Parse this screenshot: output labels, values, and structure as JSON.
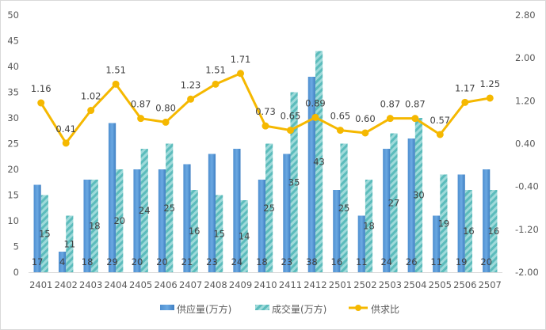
{
  "chart_data": {
    "type": "bar",
    "categories": [
      "2401",
      "2402",
      "2403",
      "2404",
      "2405",
      "2406",
      "2407",
      "2408",
      "2409",
      "2410",
      "2411",
      "2412",
      "2501",
      "2502",
      "2503",
      "2504",
      "2505",
      "2506",
      "2507"
    ],
    "series": [
      {
        "name": "供应量(万方)",
        "type": "bar",
        "axis": "left",
        "color": "#5b9bd5",
        "values": [
          17,
          4,
          18,
          29,
          20,
          20,
          21,
          23,
          24,
          18,
          23,
          38,
          16,
          11,
          24,
          26,
          11,
          19,
          20
        ],
        "labels": [
          "17",
          "4",
          "18",
          "29",
          "20",
          "20",
          "21",
          "23",
          "24",
          "18",
          "23",
          "38",
          "16",
          "11",
          "24",
          "26",
          "11",
          "19",
          "20"
        ]
      },
      {
        "name": "成交量(万方)",
        "type": "bar",
        "axis": "left",
        "color": "#6ec6c6",
        "values": [
          15,
          11,
          18,
          20,
          24,
          25,
          16,
          15,
          14,
          25,
          35,
          43,
          25,
          18,
          27,
          30,
          19,
          16,
          16
        ],
        "labels": [
          "15",
          "11",
          "18",
          "20",
          "24",
          "25",
          "16",
          "15",
          "14",
          "25",
          "35",
          "43",
          "25",
          "18",
          "27",
          "30",
          "19",
          "16",
          "16"
        ]
      },
      {
        "name": "供求比",
        "type": "line",
        "axis": "right",
        "color": "#f5b800",
        "values": [
          1.16,
          0.41,
          1.02,
          1.51,
          0.87,
          0.8,
          1.23,
          1.51,
          1.71,
          0.73,
          0.65,
          0.89,
          0.65,
          0.6,
          0.87,
          0.87,
          0.57,
          1.17,
          1.25
        ],
        "labels": [
          "1.16",
          "0.41",
          "1.02",
          "1.51",
          "0.87",
          "0.80",
          "1.23",
          "1.51",
          "1.71",
          "0.73",
          "0.65",
          "0.89",
          "0.65",
          "0.60",
          "0.87",
          "0.87",
          "0.57",
          "1.17",
          "1.25"
        ]
      }
    ],
    "y_left": {
      "min": 0,
      "max": 50,
      "ticks": [
        "0",
        "5",
        "10",
        "15",
        "20",
        "25",
        "30",
        "35",
        "40",
        "45",
        "50"
      ]
    },
    "y_right": {
      "min": -2.0,
      "max": 2.8,
      "ticks": [
        "-2.00",
        "-1.20",
        "-0.40",
        "0.40",
        "1.20",
        "2.00",
        "2.80"
      ]
    },
    "legend": {
      "position": "bottom"
    },
    "grid": false
  }
}
